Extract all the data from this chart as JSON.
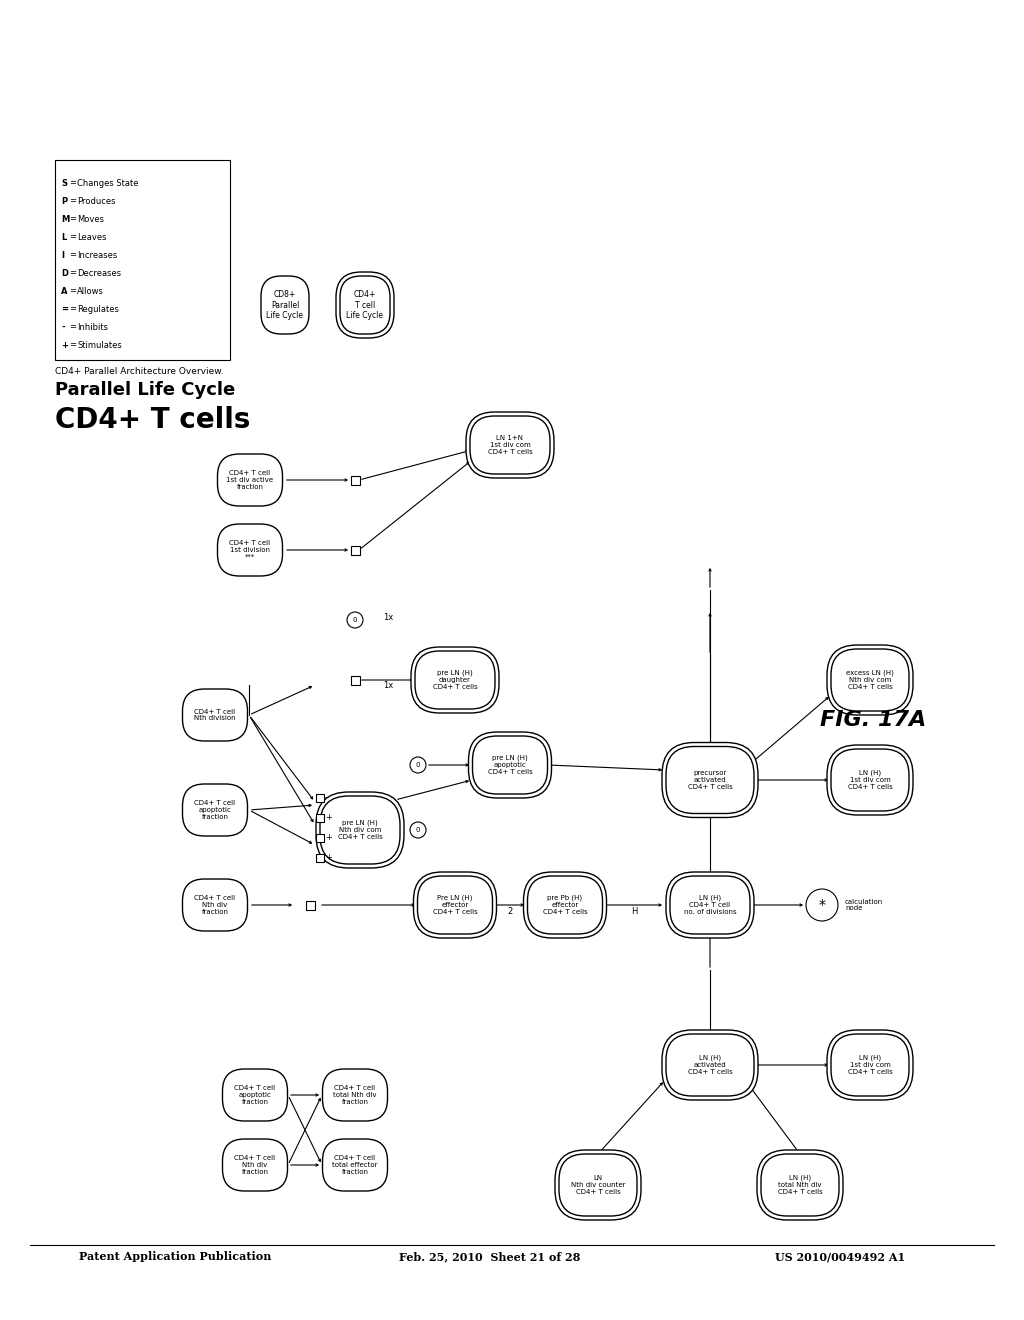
{
  "header_left": "Patent Application Publication",
  "header_mid": "Feb. 25, 2010  Sheet 21 of 28",
  "header_right": "US 2010/0049492 A1",
  "title_large": "CD4+ T cells",
  "title_medium": "Parallel Life Cycle",
  "subtitle": "CD4+ Parallel Architecture Overview.",
  "fig_label": "FIG. 17A",
  "background": "#ffffff",
  "legend_items": [
    {
      "symbol": "+",
      "label": "Stimulates"
    },
    {
      "symbol": "-",
      "label": "Inhibits"
    },
    {
      "symbol": "=",
      "label": "Regulates"
    },
    {
      "symbol": "A",
      "label": "Allows"
    },
    {
      "symbol": "D",
      "label": "Decreases"
    },
    {
      "symbol": "I",
      "label": "Increases"
    },
    {
      "symbol": "L",
      "label": "Leaves"
    },
    {
      "symbol": "M",
      "label": "Moves"
    },
    {
      "symbol": "P",
      "label": "Produces"
    },
    {
      "symbol": "S",
      "label": "Changes State"
    }
  ]
}
